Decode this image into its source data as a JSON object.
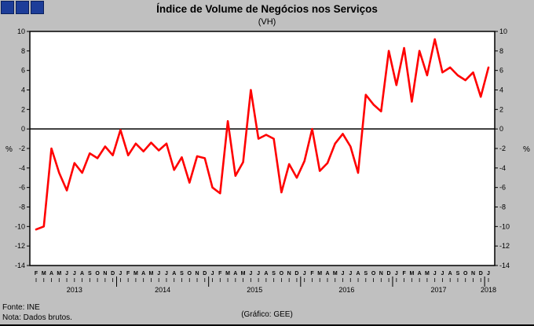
{
  "logo": {
    "color": "#1d3d99",
    "square_count": 3
  },
  "header": {
    "title": "Índice de Volume de Negócios nos Serviços",
    "subtitle": "(VH)"
  },
  "footer": {
    "source": "Fonte: INE",
    "note": "Nota: Dados brutos.",
    "credit": "(Gráfico: GEE)"
  },
  "chart_data": {
    "type": "line",
    "title": "Índice de Volume de Negócios nos Serviços",
    "subtitle": "(VH)",
    "ylabel_left": "%",
    "ylabel_right": "%",
    "ylim": [
      -14,
      10
    ],
    "ytick_step": 2,
    "grid": false,
    "line_color": "#ff0000",
    "axis_color": "#000000",
    "plot_bg": "#ffffff",
    "page_bg": "#c0c0c0",
    "x_month_labels": [
      "F",
      "M",
      "A",
      "M",
      "J",
      "J",
      "A",
      "S",
      "O",
      "N",
      "D",
      "J",
      "F",
      "M",
      "A",
      "M",
      "J",
      "J",
      "A",
      "S",
      "O",
      "N",
      "D",
      "J",
      "F",
      "M",
      "A",
      "M",
      "J",
      "J",
      "A",
      "S",
      "O",
      "N",
      "D",
      "J",
      "F",
      "M",
      "A",
      "M",
      "J",
      "J",
      "A",
      "S",
      "O",
      "N",
      "D",
      "J",
      "F",
      "M",
      "A",
      "M",
      "J",
      "J",
      "A",
      "S",
      "O",
      "N",
      "D",
      "J"
    ],
    "years": [
      {
        "label": "2013",
        "count": 11
      },
      {
        "label": "2014",
        "count": 12
      },
      {
        "label": "2015",
        "count": 12
      },
      {
        "label": "2016",
        "count": 12
      },
      {
        "label": "2017",
        "count": 12
      },
      {
        "label": "2018",
        "count": 1
      }
    ],
    "values": [
      -10.3,
      -10.0,
      -2.0,
      -4.5,
      -6.3,
      -3.5,
      -4.5,
      -2.5,
      -3.0,
      -1.8,
      -2.7,
      -0.1,
      -2.7,
      -1.5,
      -2.3,
      -1.4,
      -2.2,
      -1.5,
      -4.2,
      -2.9,
      -5.5,
      -2.8,
      -3.0,
      -6.0,
      -6.6,
      0.8,
      -4.8,
      -3.4,
      4.0,
      -1.0,
      -0.6,
      -1.0,
      -6.5,
      -3.6,
      -5.0,
      -3.3,
      0.0,
      -4.3,
      -3.5,
      -1.5,
      -0.5,
      -1.8,
      -4.5,
      3.5,
      2.5,
      1.8,
      8.0,
      4.5,
      8.3,
      2.8,
      8.0,
      5.5,
      9.2,
      5.8,
      6.3,
      5.5,
      5.0,
      5.8,
      3.3,
      6.3
    ]
  }
}
